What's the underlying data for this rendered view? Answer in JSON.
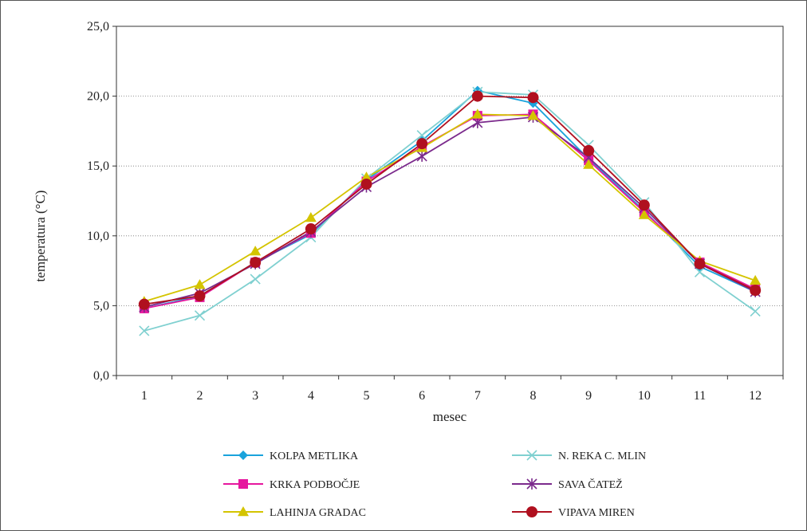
{
  "chart_data": {
    "type": "line",
    "xlabel": "mesec",
    "ylabel": "temperatura (°C)",
    "ylim": [
      0,
      25
    ],
    "yticks": [
      "0,0",
      "5,0",
      "10,0",
      "15,0",
      "20,0",
      "25,0"
    ],
    "categories": [
      "1",
      "2",
      "3",
      "4",
      "5",
      "6",
      "7",
      "8",
      "9",
      "10",
      "11",
      "12"
    ],
    "grid": "horizontal dotted",
    "legend_position": "bottom",
    "series": [
      {
        "name": "KOLPA METLIKA",
        "color": "#1aa3dc",
        "marker": "diamond",
        "values": [
          4.8,
          5.7,
          8.1,
          10.1,
          14.0,
          16.8,
          20.4,
          19.5,
          15.5,
          11.8,
          7.8,
          6.0
        ]
      },
      {
        "name": "N. REKA C. MLIN",
        "color": "#7fd0d0",
        "marker": "x",
        "values": [
          3.2,
          4.3,
          6.9,
          9.9,
          14.1,
          17.2,
          20.3,
          20.1,
          16.5,
          12.4,
          7.4,
          4.6
        ]
      },
      {
        "name": "KRKA PODBOČJE",
        "color": "#e6179e",
        "marker": "square",
        "values": [
          4.8,
          5.6,
          8.1,
          10.2,
          13.9,
          16.4,
          18.6,
          18.7,
          15.4,
          11.7,
          8.1,
          6.2
        ]
      },
      {
        "name": "SAVA ČATEŽ",
        "color": "#7b2a8c",
        "marker": "asterisk",
        "values": [
          4.9,
          5.9,
          8.0,
          10.3,
          13.5,
          15.7,
          18.1,
          18.5,
          15.6,
          12.0,
          8.0,
          6.0
        ]
      },
      {
        "name": "LAHINJA GRADAC",
        "color": "#d4c400",
        "marker": "triangle",
        "values": [
          5.3,
          6.5,
          8.9,
          11.3,
          14.2,
          16.3,
          18.7,
          18.6,
          15.1,
          11.5,
          8.2,
          6.8
        ]
      },
      {
        "name": "VIPAVA MIREN",
        "color": "#b0101f",
        "marker": "circle",
        "values": [
          5.1,
          5.7,
          8.1,
          10.5,
          13.7,
          16.6,
          20.0,
          19.9,
          16.1,
          12.2,
          8.0,
          6.1
        ]
      }
    ]
  }
}
